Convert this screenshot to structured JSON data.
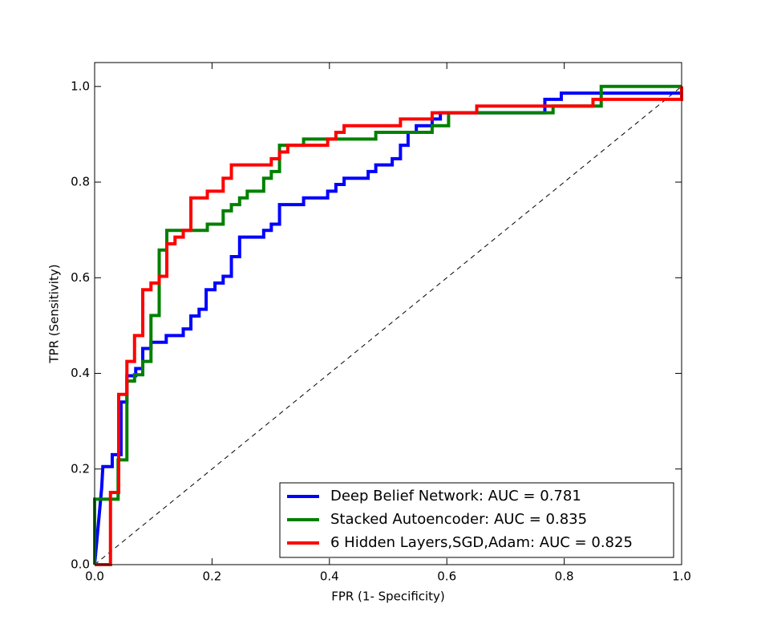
{
  "chart_data": {
    "type": "line",
    "xlabel": "FPR (1- Specificity)",
    "ylabel": "TPR (Sensitivity)",
    "xlim": [
      0,
      1
    ],
    "ylim": [
      0,
      1.05
    ],
    "xticks": [
      {
        "value": 0,
        "label": "0.0"
      },
      0.2,
      0.4,
      0.6,
      0.8,
      {
        "value": 1,
        "label": "1.0"
      }
    ],
    "yticks": [
      {
        "value": 0,
        "label": "0.0"
      },
      0.2,
      0.4,
      0.6,
      0.8,
      {
        "value": 1,
        "label": "1.0"
      }
    ],
    "legend": "lower right",
    "series": [
      {
        "name": "Deep Belief Network: AUC = 0.781",
        "color": "#0000ff",
        "x": [
          0,
          0.012,
          0.014,
          0.03,
          0.03,
          0.045,
          0.045,
          0.055,
          0.055,
          0.07,
          0.07,
          0.082,
          0.082,
          0.096,
          0.096,
          0.122,
          0.122,
          0.151,
          0.151,
          0.164,
          0.164,
          0.178,
          0.178,
          0.19,
          0.19,
          0.205,
          0.205,
          0.219,
          0.219,
          0.233,
          0.233,
          0.247,
          0.247,
          0.288,
          0.288,
          0.301,
          0.301,
          0.315,
          0.315,
          0.356,
          0.356,
          0.397,
          0.397,
          0.411,
          0.411,
          0.425,
          0.425,
          0.466,
          0.466,
          0.479,
          0.479,
          0.507,
          0.507,
          0.521,
          0.521,
          0.534,
          0.534,
          0.548,
          0.548,
          0.575,
          0.575,
          0.589,
          0.589,
          0.767,
          0.767,
          0.795,
          0.795,
          1,
          1
        ],
        "values": [
          0,
          0.16,
          0.205,
          0.205,
          0.23,
          0.23,
          0.34,
          0.34,
          0.395,
          0.395,
          0.41,
          0.41,
          0.452,
          0.452,
          0.465,
          0.465,
          0.479,
          0.479,
          0.493,
          0.493,
          0.52,
          0.52,
          0.534,
          0.534,
          0.575,
          0.575,
          0.589,
          0.589,
          0.603,
          0.603,
          0.644,
          0.644,
          0.685,
          0.685,
          0.699,
          0.699,
          0.712,
          0.712,
          0.753,
          0.753,
          0.767,
          0.767,
          0.781,
          0.781,
          0.795,
          0.795,
          0.808,
          0.808,
          0.822,
          0.822,
          0.836,
          0.836,
          0.849,
          0.849,
          0.877,
          0.877,
          0.904,
          0.904,
          0.918,
          0.918,
          0.932,
          0.932,
          0.945,
          0.945,
          0.973,
          0.973,
          0.986,
          0.986,
          1
        ]
      },
      {
        "name": "Stacked Autoencoder: AUC = 0.835",
        "color": "#008000",
        "x": [
          0,
          0,
          0.04,
          0.04,
          0.055,
          0.055,
          0.068,
          0.068,
          0.082,
          0.082,
          0.096,
          0.096,
          0.11,
          0.11,
          0.123,
          0.123,
          0.192,
          0.192,
          0.219,
          0.219,
          0.233,
          0.233,
          0.247,
          0.247,
          0.26,
          0.26,
          0.288,
          0.288,
          0.301,
          0.301,
          0.315,
          0.315,
          0.356,
          0.356,
          0.479,
          0.479,
          0.575,
          0.575,
          0.603,
          0.603,
          0.781,
          0.781,
          0.863,
          0.863,
          1
        ],
        "values": [
          0,
          0.137,
          0.137,
          0.219,
          0.219,
          0.384,
          0.384,
          0.397,
          0.397,
          0.425,
          0.425,
          0.521,
          0.521,
          0.658,
          0.658,
          0.699,
          0.699,
          0.712,
          0.712,
          0.74,
          0.74,
          0.753,
          0.753,
          0.767,
          0.767,
          0.781,
          0.781,
          0.808,
          0.808,
          0.822,
          0.822,
          0.877,
          0.877,
          0.89,
          0.89,
          0.904,
          0.904,
          0.918,
          0.918,
          0.945,
          0.945,
          0.959,
          0.959,
          1,
          1
        ]
      },
      {
        "name": "6 Hidden Layers,SGD,Adam: AUC = 0.825",
        "color": "#ff0000",
        "x": [
          0,
          0.027,
          0.027,
          0.041,
          0.041,
          0.055,
          0.055,
          0.068,
          0.068,
          0.082,
          0.082,
          0.096,
          0.096,
          0.11,
          0.11,
          0.123,
          0.123,
          0.137,
          0.137,
          0.151,
          0.151,
          0.164,
          0.164,
          0.192,
          0.192,
          0.219,
          0.219,
          0.233,
          0.233,
          0.301,
          0.301,
          0.315,
          0.315,
          0.329,
          0.329,
          0.397,
          0.397,
          0.411,
          0.411,
          0.425,
          0.425,
          0.521,
          0.521,
          0.575,
          0.575,
          0.651,
          0.651,
          0.849,
          0.849,
          1,
          1
        ],
        "values": [
          0,
          0,
          0.151,
          0.151,
          0.356,
          0.356,
          0.425,
          0.425,
          0.479,
          0.479,
          0.575,
          0.575,
          0.589,
          0.589,
          0.603,
          0.603,
          0.671,
          0.671,
          0.685,
          0.685,
          0.699,
          0.699,
          0.767,
          0.767,
          0.781,
          0.781,
          0.808,
          0.808,
          0.836,
          0.836,
          0.849,
          0.849,
          0.863,
          0.863,
          0.877,
          0.877,
          0.89,
          0.89,
          0.904,
          0.904,
          0.918,
          0.918,
          0.932,
          0.932,
          0.945,
          0.945,
          0.959,
          0.959,
          0.973,
          0.973,
          1
        ]
      }
    ]
  }
}
